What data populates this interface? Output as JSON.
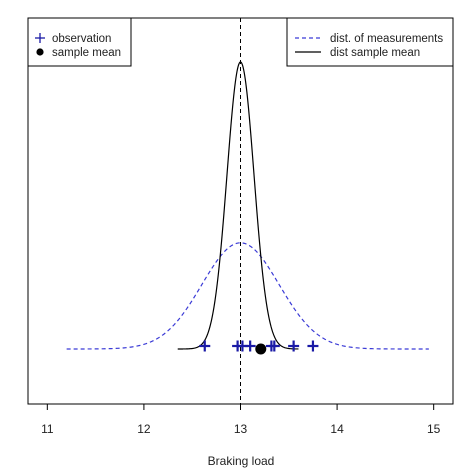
{
  "chart_data": {
    "type": "line",
    "title": "",
    "xlabel": "Braking load",
    "ylabel": "",
    "xlim": [
      10.8,
      15.2
    ],
    "xticks": [
      11,
      12,
      13,
      14,
      15
    ],
    "grid": false,
    "mean_line_x": 13,
    "observations": [
      12.63,
      12.97,
      13.02,
      13.1,
      13.32,
      13.35,
      13.55,
      13.75
    ],
    "sample_mean": 13.21,
    "series": [
      {
        "name": "dist. of measurements",
        "style": "dashed",
        "color": "#3b3bd6",
        "mean": 13,
        "sd": 0.4,
        "x_range": [
          11.2,
          14.95
        ],
        "peak_level": 0.37
      },
      {
        "name": "dist sample mean",
        "style": "solid",
        "color": "#000000",
        "mean": 13,
        "sd": 0.14,
        "x_range": [
          12.35,
          13.6
        ],
        "peak_level": 1.0
      }
    ],
    "legend_left": {
      "placement": "top-left",
      "entries": [
        {
          "label": "observation",
          "symbol": "plus",
          "color": "#1a1aa6"
        },
        {
          "label": "sample mean",
          "symbol": "dot",
          "color": "#000000"
        }
      ]
    },
    "legend_right": {
      "placement": "top-right",
      "entries": [
        {
          "label": "dist. of measurements",
          "symbol": "dashed-line",
          "color": "#3b3bd6"
        },
        {
          "label": "dist sample mean",
          "symbol": "solid-line",
          "color": "#000000"
        }
      ]
    }
  }
}
